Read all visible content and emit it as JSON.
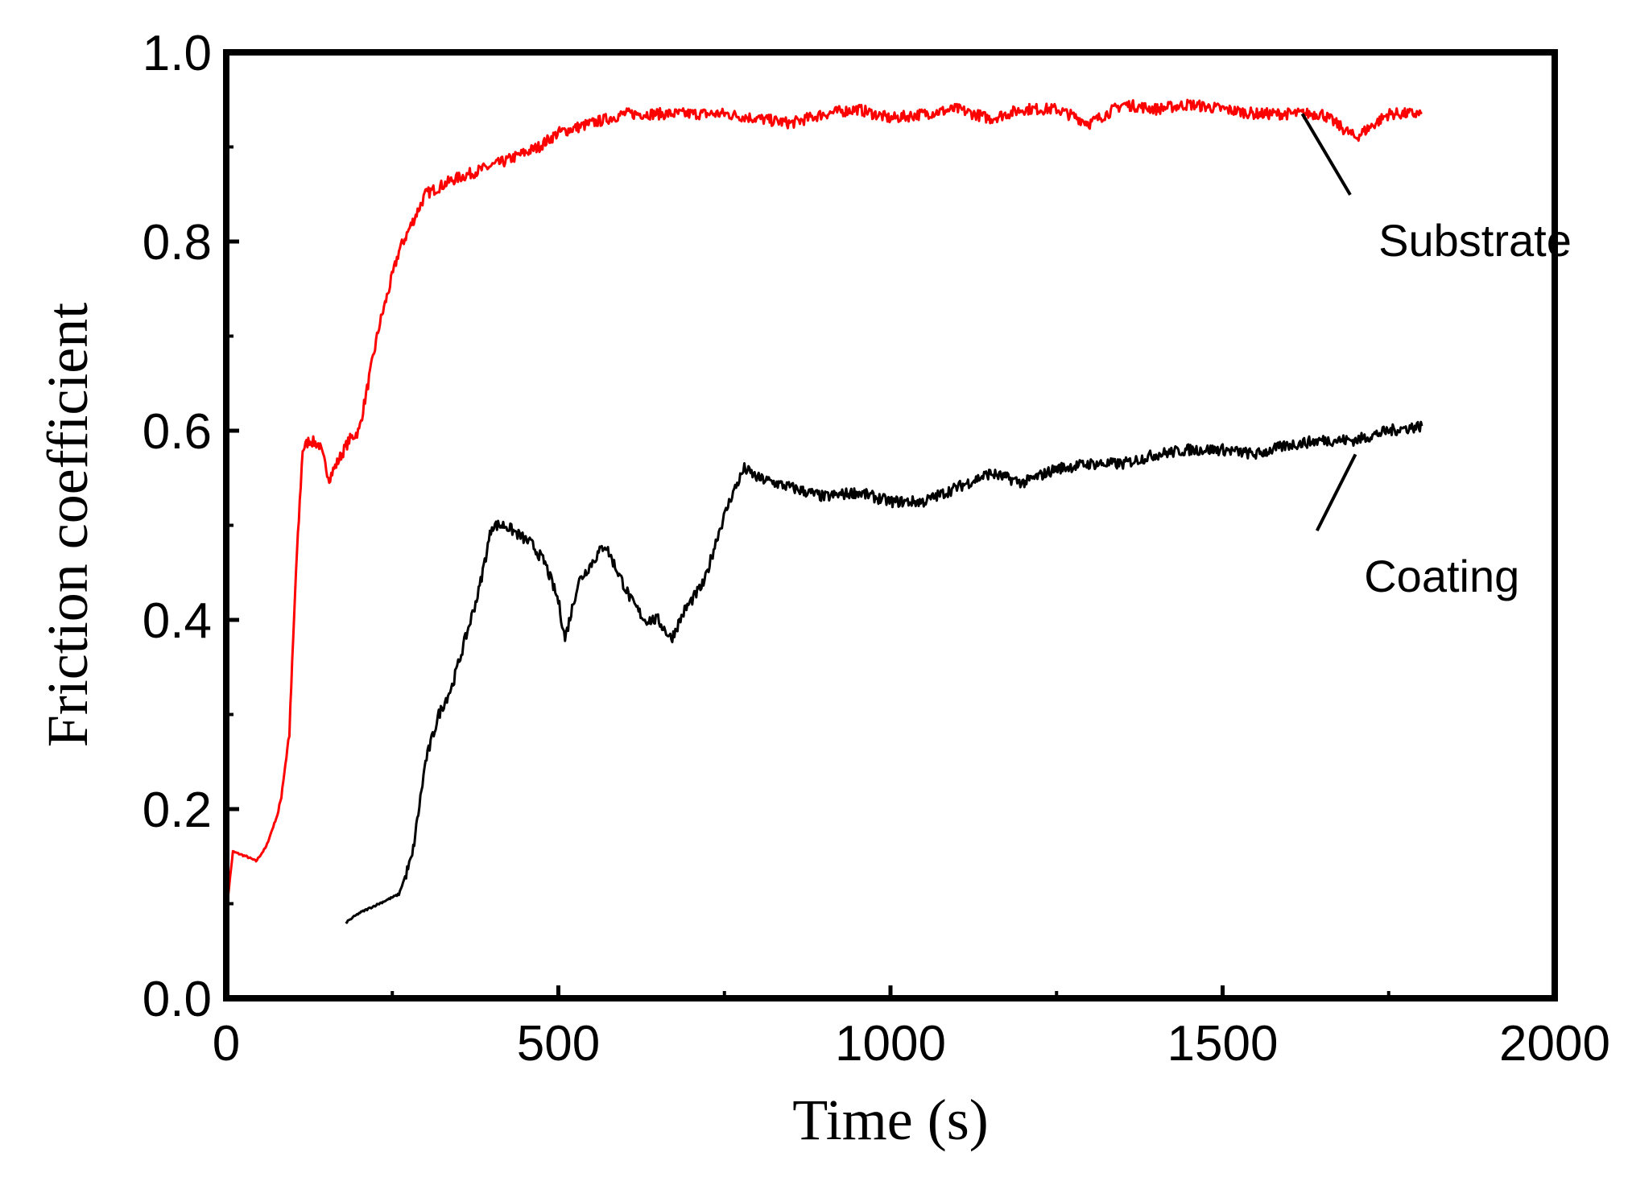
{
  "chart_data": {
    "type": "line",
    "title": "",
    "xlabel": "Time (s)",
    "ylabel": "Friction coefficient",
    "xlim": [
      0,
      2000
    ],
    "ylim": [
      0.0,
      1.0
    ],
    "x_ticks": [
      0,
      500,
      1000,
      1500,
      2000
    ],
    "x_tick_labels": [
      "0",
      "500",
      "1000",
      "1500",
      "2000"
    ],
    "y_ticks": [
      0.0,
      0.2,
      0.4,
      0.6,
      0.8,
      1.0
    ],
    "y_tick_labels": [
      "0.0",
      "0.2",
      "0.4",
      "0.6",
      "0.8",
      "1.0"
    ],
    "grid": false,
    "legend": "none",
    "series": [
      {
        "name": "Substrate",
        "color": "#ff0000",
        "x": [
          0,
          10,
          30,
          45,
          60,
          80,
          95,
          105,
          115,
          125,
          140,
          155,
          170,
          185,
          200,
          230,
          260,
          300,
          340,
          380,
          420,
          470,
          500,
          550,
          600,
          650,
          700,
          750,
          800,
          850,
          900,
          950,
          1000,
          1050,
          1100,
          1150,
          1200,
          1250,
          1300,
          1350,
          1400,
          1450,
          1500,
          1550,
          1600,
          1650,
          1700,
          1750,
          1800
        ],
        "y": [
          0.09,
          0.155,
          0.15,
          0.145,
          0.16,
          0.2,
          0.28,
          0.45,
          0.58,
          0.59,
          0.585,
          0.55,
          0.57,
          0.59,
          0.6,
          0.71,
          0.79,
          0.85,
          0.865,
          0.875,
          0.885,
          0.9,
          0.915,
          0.925,
          0.935,
          0.935,
          0.935,
          0.935,
          0.93,
          0.925,
          0.935,
          0.94,
          0.93,
          0.935,
          0.94,
          0.93,
          0.94,
          0.94,
          0.925,
          0.945,
          0.94,
          0.945,
          0.94,
          0.935,
          0.935,
          0.935,
          0.91,
          0.935,
          0.935
        ]
      },
      {
        "name": "Coating",
        "color": "#000000",
        "x": [
          180,
          200,
          230,
          260,
          280,
          300,
          320,
          340,
          360,
          380,
          400,
          420,
          440,
          460,
          480,
          500,
          510,
          530,
          550,
          570,
          590,
          610,
          630,
          650,
          670,
          690,
          700,
          720,
          740,
          760,
          780,
          800,
          850,
          900,
          950,
          1000,
          1050,
          1100,
          1150,
          1200,
          1250,
          1300,
          1350,
          1400,
          1450,
          1500,
          1550,
          1600,
          1650,
          1700,
          1750,
          1800
        ],
        "y": [
          0.08,
          0.09,
          0.1,
          0.11,
          0.15,
          0.25,
          0.3,
          0.33,
          0.38,
          0.43,
          0.5,
          0.5,
          0.49,
          0.48,
          0.46,
          0.42,
          0.38,
          0.44,
          0.46,
          0.48,
          0.45,
          0.42,
          0.4,
          0.4,
          0.38,
          0.41,
          0.42,
          0.44,
          0.49,
          0.53,
          0.56,
          0.55,
          0.54,
          0.53,
          0.535,
          0.525,
          0.525,
          0.54,
          0.555,
          0.545,
          0.56,
          0.565,
          0.565,
          0.575,
          0.58,
          0.58,
          0.575,
          0.585,
          0.59,
          0.59,
          0.6,
          0.605
        ]
      }
    ],
    "annotations": [
      {
        "text": "Substrate",
        "series": "Substrate",
        "points_to_x": 1620,
        "points_to_y": 0.935,
        "label_x": 1880,
        "label_y": 0.8
      },
      {
        "text": "Coating",
        "series": "Coating",
        "points_to_x": 1700,
        "points_to_y": 0.575,
        "label_x": 1830,
        "label_y": 0.445
      }
    ]
  }
}
